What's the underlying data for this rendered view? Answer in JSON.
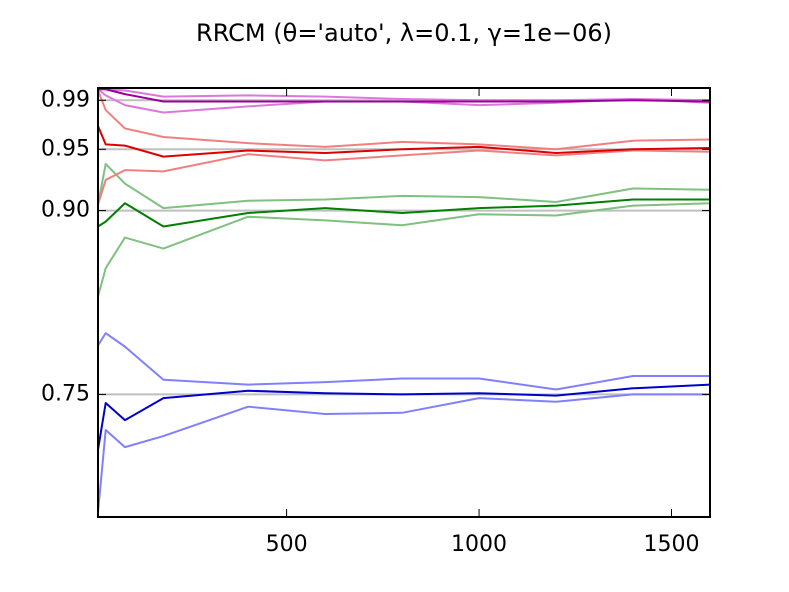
{
  "chart_data": {
    "type": "line",
    "title": "RRCM (θ='auto', λ=0.1, γ=1e−06)",
    "x": [
      10,
      30,
      80,
      180,
      400,
      600,
      800,
      1000,
      1200,
      1400,
      1600
    ],
    "xlim": [
      10,
      1600
    ],
    "xticks": [
      500,
      1000,
      1500
    ],
    "ylim": [
      0.65,
      1.0
    ],
    "yticks": [
      0.75,
      {
        "value": 0.9,
        "label": "0.90"
      },
      0.95,
      0.99
    ],
    "grid": true,
    "series": [
      {
        "color": "#8080ff",
        "values": [
          0.79,
          0.8,
          0.789,
          0.762,
          0.758,
          0.76,
          0.763,
          0.763,
          0.754,
          0.765,
          0.765
        ]
      },
      {
        "color": "#8080ff",
        "values": [
          0.654,
          0.721,
          0.707,
          0.716,
          0.74,
          0.734,
          0.735,
          0.747,
          0.744,
          0.75,
          0.75
        ]
      },
      {
        "color": "#0000cc",
        "values": [
          0.705,
          0.743,
          0.729,
          0.747,
          0.753,
          0.751,
          0.75,
          0.751,
          0.749,
          0.755,
          0.758
        ]
      },
      {
        "color": "#80c080",
        "values": [
          0.905,
          0.938,
          0.922,
          0.902,
          0.908,
          0.909,
          0.912,
          0.911,
          0.907,
          0.918,
          0.917
        ]
      },
      {
        "color": "#80c080",
        "values": [
          0.83,
          0.853,
          0.878,
          0.869,
          0.895,
          0.892,
          0.888,
          0.897,
          0.896,
          0.904,
          0.906
        ]
      },
      {
        "color": "#008000",
        "values": [
          0.887,
          0.891,
          0.906,
          0.887,
          0.898,
          0.902,
          0.898,
          0.902,
          0.904,
          0.909,
          0.909
        ]
      },
      {
        "color": "#f08080",
        "values": [
          0.998,
          0.982,
          0.967,
          0.96,
          0.955,
          0.952,
          0.956,
          0.954,
          0.95,
          0.957,
          0.958
        ]
      },
      {
        "color": "#f08080",
        "values": [
          0.905,
          0.925,
          0.933,
          0.932,
          0.946,
          0.941,
          0.945,
          0.949,
          0.945,
          0.949,
          0.948
        ]
      },
      {
        "color": "#dd0000",
        "values": [
          0.969,
          0.954,
          0.953,
          0.944,
          0.949,
          0.947,
          0.95,
          0.952,
          0.947,
          0.95,
          0.951
        ]
      },
      {
        "color": "#dd77dd",
        "values": [
          0.999,
          0.999,
          0.998,
          0.993,
          0.994,
          0.993,
          0.991,
          0.99,
          0.99,
          0.991,
          0.99
        ]
      },
      {
        "color": "#dd77dd",
        "values": [
          0.999,
          0.994,
          0.986,
          0.98,
          0.985,
          0.989,
          0.989,
          0.986,
          0.988,
          0.991,
          0.988
        ]
      },
      {
        "color": "#990099",
        "values": [
          0.999,
          0.999,
          0.995,
          0.989,
          0.989,
          0.989,
          0.989,
          0.989,
          0.989,
          0.99,
          0.989
        ]
      }
    ]
  }
}
